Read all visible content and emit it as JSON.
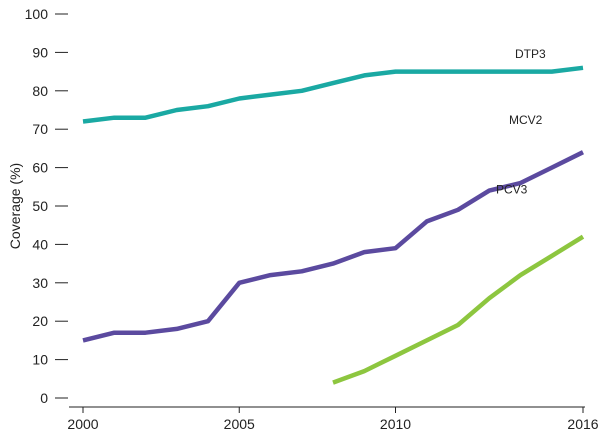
{
  "chart_data": {
    "type": "line",
    "title": "",
    "xlabel": "",
    "ylabel": "Coverage (%)",
    "xlim": [
      2000,
      2016
    ],
    "ylim": [
      0,
      100
    ],
    "x_ticks": [
      2000,
      2005,
      2010,
      2016
    ],
    "y_ticks": [
      0,
      10,
      20,
      30,
      40,
      50,
      60,
      70,
      80,
      90,
      100
    ],
    "grid": false,
    "legend": "none",
    "series": [
      {
        "name": "DTP3",
        "color": "#1aa9a3",
        "x": [
          2000,
          2001,
          2002,
          2003,
          2004,
          2005,
          2006,
          2007,
          2008,
          2009,
          2010,
          2011,
          2012,
          2013,
          2014,
          2015,
          2016
        ],
        "y": [
          72,
          73,
          73,
          75,
          76,
          78,
          79,
          80,
          82,
          84,
          85,
          85,
          85,
          85,
          85,
          85,
          86
        ]
      },
      {
        "name": "MCV2",
        "color": "#5b4a9f",
        "x": [
          2000,
          2001,
          2002,
          2003,
          2004,
          2005,
          2006,
          2007,
          2008,
          2009,
          2010,
          2011,
          2012,
          2013,
          2014,
          2015,
          2016
        ],
        "y": [
          15,
          17,
          17,
          18,
          20,
          30,
          32,
          33,
          35,
          38,
          39,
          46,
          49,
          54,
          56,
          60,
          64
        ]
      },
      {
        "name": "PCV3",
        "color": "#8dc63f",
        "x": [
          2008,
          2009,
          2010,
          2011,
          2012,
          2013,
          2014,
          2015,
          2016
        ],
        "y": [
          4,
          7,
          11,
          15,
          19,
          26,
          32,
          37,
          42
        ]
      }
    ]
  }
}
